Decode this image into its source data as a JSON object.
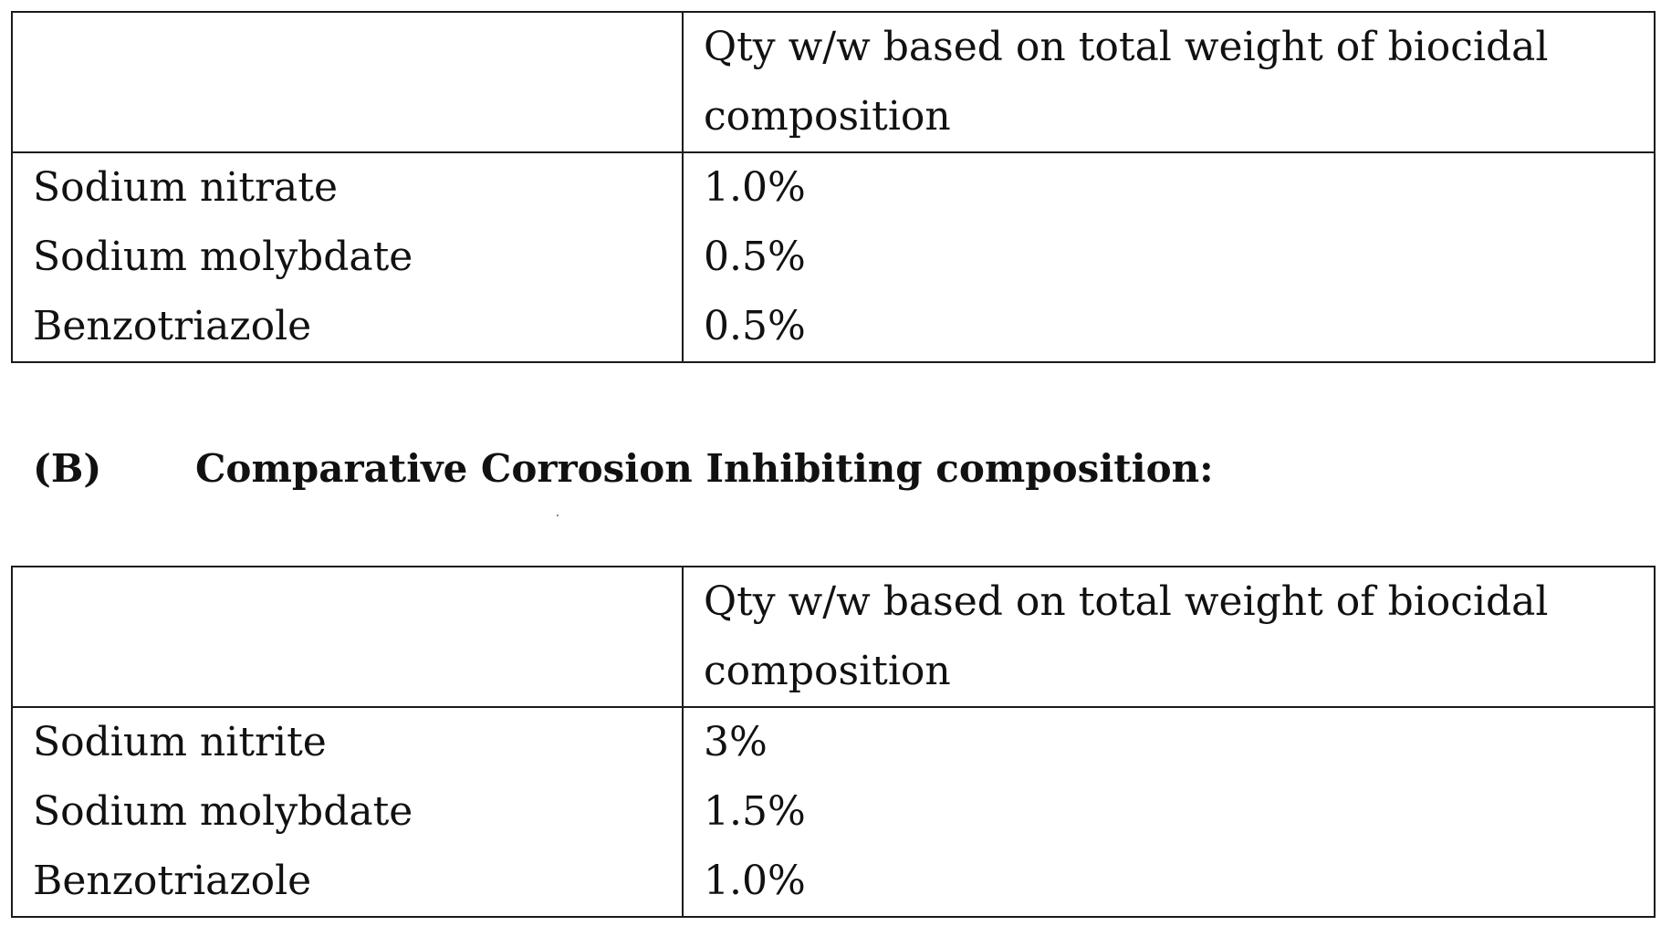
{
  "table_a": {
    "header": [
      "",
      "Qty w/w based on total weight of biocidal composition"
    ],
    "rows": [
      [
        "Sodium nitrate",
        "1.0%"
      ],
      [
        "Sodium molybdate",
        "0.5%"
      ],
      [
        "Benzotriazole",
        "0.5%"
      ]
    ]
  },
  "section_b": {
    "label": "(B)",
    "title": "Comparative Corrosion Inhibiting composition:"
  },
  "table_b": {
    "header": [
      "",
      "Qty w/w based on total weight of biocidal composition"
    ],
    "rows": [
      [
        "Sodium nitrite",
        "3%"
      ],
      [
        "Sodium molybdate",
        "1.5%"
      ],
      [
        "Benzotriazole",
        "1.0%"
      ]
    ]
  }
}
